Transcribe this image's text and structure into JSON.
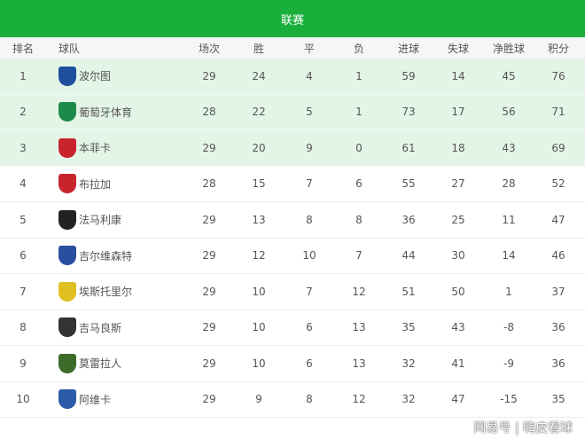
{
  "title": "联赛",
  "columns": [
    "排名",
    "球队",
    "场次",
    "胜",
    "平",
    "负",
    "进球",
    "失球",
    "净胜球",
    "积分"
  ],
  "rows": [
    {
      "rank": "1",
      "team": "波尔图",
      "crest": "#1d4f9c",
      "p": "29",
      "w": "24",
      "d": "4",
      "l": "1",
      "gf": "59",
      "ga": "14",
      "gd": "45",
      "pts": "76"
    },
    {
      "rank": "2",
      "team": "葡萄牙体育",
      "crest": "#1e8a4a",
      "p": "28",
      "w": "22",
      "d": "5",
      "l": "1",
      "gf": "73",
      "ga": "17",
      "gd": "56",
      "pts": "71"
    },
    {
      "rank": "3",
      "team": "本菲卡",
      "crest": "#c8242d",
      "p": "29",
      "w": "20",
      "d": "9",
      "l": "0",
      "gf": "61",
      "ga": "18",
      "gd": "43",
      "pts": "69"
    },
    {
      "rank": "4",
      "team": "布拉加",
      "crest": "#c8242d",
      "p": "28",
      "w": "15",
      "d": "7",
      "l": "6",
      "gf": "55",
      "ga": "27",
      "gd": "28",
      "pts": "52"
    },
    {
      "rank": "5",
      "team": "法马利康",
      "crest": "#222222",
      "p": "29",
      "w": "13",
      "d": "8",
      "l": "8",
      "gf": "36",
      "ga": "25",
      "gd": "11",
      "pts": "47"
    },
    {
      "rank": "6",
      "team": "吉尔维森特",
      "crest": "#2a4ea0",
      "p": "29",
      "w": "12",
      "d": "10",
      "l": "7",
      "gf": "44",
      "ga": "30",
      "gd": "14",
      "pts": "46"
    },
    {
      "rank": "7",
      "team": "埃斯托里尔",
      "crest": "#e0c020",
      "p": "29",
      "w": "10",
      "d": "7",
      "l": "12",
      "gf": "51",
      "ga": "50",
      "gd": "1",
      "pts": "37"
    },
    {
      "rank": "8",
      "team": "吉马良斯",
      "crest": "#333333",
      "p": "29",
      "w": "10",
      "d": "6",
      "l": "13",
      "gf": "35",
      "ga": "43",
      "gd": "-8",
      "pts": "36"
    },
    {
      "rank": "9",
      "team": "莫雷拉人",
      "crest": "#3c6b2a",
      "p": "29",
      "w": "10",
      "d": "6",
      "l": "13",
      "gf": "32",
      "ga": "41",
      "gd": "-9",
      "pts": "36"
    },
    {
      "rank": "10",
      "team": "阿维卡",
      "crest": "#2a5aa8",
      "p": "29",
      "w": "9",
      "d": "8",
      "l": "12",
      "gf": "32",
      "ga": "47",
      "gd": "-15",
      "pts": "35"
    }
  ],
  "watermark": "网易号 | 嗨皮看球",
  "colors": {
    "header": "#1aaf3b",
    "highlight": "#e3f5e6"
  }
}
